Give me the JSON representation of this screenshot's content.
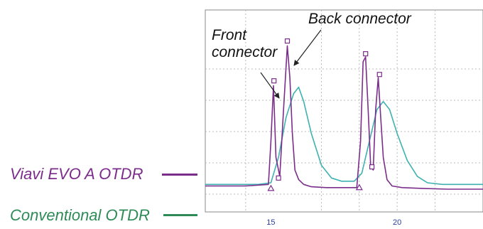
{
  "chart_data": {
    "type": "line",
    "xlim": [
      12.4,
      23.4
    ],
    "ylim": [
      0,
      1
    ],
    "x_ticks": [
      "15",
      "20"
    ],
    "x_tick_values": [
      15,
      20
    ],
    "grid": true,
    "annotations": [
      {
        "text": "Front\nconnector",
        "x": 15.1,
        "y": 0.58
      },
      {
        "text": "Back connector",
        "x": 15.8,
        "y": 0.75
      }
    ],
    "series": [
      {
        "name": "Viavi EVO A OTDR",
        "color": "#7b2d8b",
        "x": [
          12.4,
          14.0,
          14.9,
          15.0,
          15.1,
          15.2,
          15.35,
          15.5,
          15.65,
          15.75,
          15.85,
          15.95,
          16.1,
          16.3,
          16.6,
          17.2,
          18.0,
          18.4,
          18.55,
          18.65,
          18.75,
          18.85,
          18.95,
          19.05,
          19.15,
          19.25,
          19.35,
          19.45,
          19.6,
          19.8,
          20.2,
          21.0,
          22.0,
          23.4
        ],
        "y": [
          0.02,
          0.02,
          0.03,
          0.3,
          0.65,
          0.2,
          0.08,
          0.5,
          0.9,
          0.7,
          0.35,
          0.12,
          0.06,
          0.03,
          0.015,
          0.01,
          0.01,
          0.01,
          0.3,
          0.8,
          0.83,
          0.5,
          0.15,
          0.12,
          0.5,
          0.7,
          0.45,
          0.2,
          0.06,
          0.02,
          0.01,
          0.005,
          0.0,
          0.0
        ],
        "markers": [
          {
            "x": 15.0,
            "y": 0.005,
            "shape": "triangle"
          },
          {
            "x": 15.12,
            "y": 0.68,
            "shape": "square"
          },
          {
            "x": 15.65,
            "y": 0.93,
            "shape": "square"
          },
          {
            "x": 15.3,
            "y": 0.07,
            "shape": "square"
          },
          {
            "x": 18.5,
            "y": 0.01,
            "shape": "triangle"
          },
          {
            "x": 18.75,
            "y": 0.85,
            "shape": "square"
          },
          {
            "x": 19.0,
            "y": 0.14,
            "shape": "square"
          },
          {
            "x": 19.3,
            "y": 0.72,
            "shape": "square"
          }
        ]
      },
      {
        "name": "Conventional OTDR",
        "color": "#2e8b57",
        "plot_color": "#3fb1b0",
        "x": [
          12.4,
          14.5,
          15.0,
          15.3,
          15.6,
          15.9,
          16.1,
          16.3,
          16.6,
          17.0,
          17.4,
          17.8,
          18.3,
          18.6,
          18.9,
          19.2,
          19.45,
          19.7,
          20.0,
          20.4,
          20.8,
          21.2,
          21.8,
          22.5,
          23.4
        ],
        "y": [
          0.03,
          0.03,
          0.04,
          0.2,
          0.45,
          0.6,
          0.64,
          0.55,
          0.35,
          0.15,
          0.07,
          0.05,
          0.05,
          0.1,
          0.3,
          0.5,
          0.55,
          0.5,
          0.35,
          0.18,
          0.08,
          0.04,
          0.03,
          0.03,
          0.03
        ]
      }
    ]
  }
}
